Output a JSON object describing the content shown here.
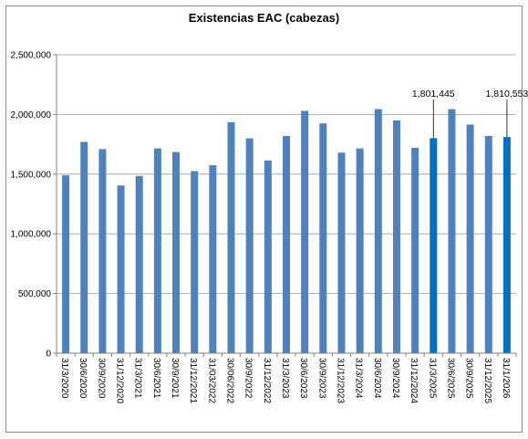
{
  "chart_data": {
    "type": "bar",
    "title": "Existencias EAC (cabezas)",
    "xlabel": "",
    "ylabel": "",
    "ylim": [
      0,
      2500000
    ],
    "yticks": [
      0,
      500000,
      1000000,
      1500000,
      2000000,
      2500000
    ],
    "ytick_labels": [
      "0",
      "500,000",
      "1,000,000",
      "1,500,000",
      "2,000,000",
      "2,500,000"
    ],
    "grid": true,
    "bar_color": "#4f81bd",
    "highlight_color": "#0070c0",
    "categories": [
      "31/3/2020",
      "30/6/2020",
      "30/9/2020",
      "31/12/2020",
      "31/3/2021",
      "30/6/2021",
      "30/9/2021",
      "31/12/2021",
      "31/03/2022",
      "30/06/2022",
      "30/9/2022",
      "31/12/2022",
      "31/3/2023",
      "30/6/2023",
      "30/9/2023",
      "31/12/2023",
      "31/3/2024",
      "30/6/2024",
      "30/9/2024",
      "31/12/2024",
      "31/3/2025",
      "30/6/2025",
      "30/9/2025",
      "31/12/2025",
      "31/1/2026"
    ],
    "values": [
      1490000,
      1770000,
      1710000,
      1405000,
      1485000,
      1715000,
      1685000,
      1525000,
      1575000,
      1935000,
      1800000,
      1615000,
      1820000,
      2030000,
      1925000,
      1680000,
      1715000,
      2045000,
      1950000,
      1720000,
      1801445,
      2045000,
      1915000,
      1820000,
      1810553
    ],
    "highlighted": [
      20,
      24
    ],
    "data_labels": [
      {
        "index": 20,
        "text": "1,801,445"
      },
      {
        "index": 24,
        "text": "1,810,553"
      }
    ]
  }
}
